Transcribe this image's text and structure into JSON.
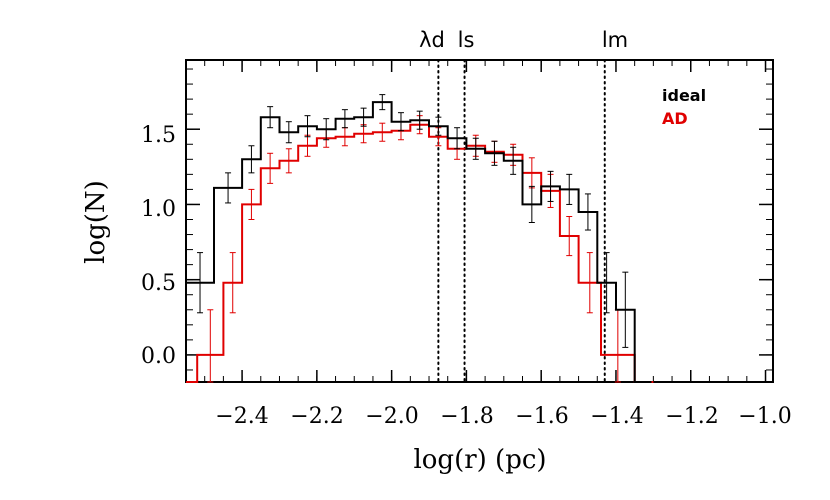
{
  "chart_data": {
    "type": "line",
    "title": "",
    "xlabel": "log(r) (pc)",
    "ylabel": "log(N)",
    "xlim": [
      -2.55,
      -0.98
    ],
    "ylim": [
      -0.18,
      1.96
    ],
    "xticks": [
      -2.4,
      -2.2,
      -2.0,
      -1.8,
      -1.6,
      -1.4,
      -1.2,
      -1.0
    ],
    "xtick_labels": [
      "−2.4",
      "−2.2",
      "−2.0",
      "−1.8",
      "−1.6",
      "−1.4",
      "−1.2",
      "−1.0"
    ],
    "yticks": [
      0.0,
      0.5,
      1.0,
      1.5
    ],
    "ytick_labels": [
      "0.0",
      "0.5",
      "1.0",
      "1.5"
    ],
    "vlines": [
      {
        "x": -1.875,
        "label": "λd"
      },
      {
        "x": -1.805,
        "label": "ls"
      },
      {
        "x": -1.43,
        "label": "lm"
      }
    ],
    "series": [
      {
        "name": "ideal",
        "color": "#000000",
        "edges": [
          -2.55,
          -2.475,
          -2.4,
          -2.35,
          -2.3,
          -2.25,
          -2.2,
          -2.15,
          -2.1,
          -2.05,
          -2.0,
          -1.95,
          -1.9,
          -1.85,
          -1.8,
          -1.75,
          -1.7,
          -1.65,
          -1.6,
          -1.55,
          -1.5,
          -1.45,
          -1.4,
          -1.35,
          -1.305
        ],
        "values": [
          0.48,
          1.11,
          1.3,
          1.58,
          1.48,
          1.52,
          1.5,
          1.57,
          1.58,
          1.68,
          1.55,
          1.56,
          1.52,
          1.44,
          1.37,
          1.34,
          1.29,
          1.0,
          1.12,
          1.1,
          0.95,
          0.48,
          0.3,
          -0.2
        ],
        "errors": [
          0.2,
          0.1,
          0.09,
          0.07,
          0.07,
          0.07,
          0.07,
          0.06,
          0.06,
          0.05,
          0.06,
          0.06,
          0.06,
          0.07,
          0.07,
          0.08,
          0.09,
          0.12,
          0.1,
          0.1,
          0.12,
          0.2,
          0.25,
          0
        ]
      },
      {
        "name": "AD",
        "color": "#e00000",
        "edges": [
          -2.55,
          -2.52,
          -2.45,
          -2.4,
          -2.35,
          -2.3,
          -2.25,
          -2.2,
          -2.15,
          -2.1,
          -2.05,
          -2.0,
          -1.95,
          -1.9,
          -1.85,
          -1.8,
          -1.75,
          -1.7,
          -1.65,
          -1.6,
          -1.55,
          -1.5,
          -1.44,
          -1.35,
          -1.3
        ],
        "values": [
          -0.2,
          0.0,
          0.48,
          1.0,
          1.24,
          1.29,
          1.39,
          1.44,
          1.45,
          1.47,
          1.48,
          1.49,
          1.53,
          1.45,
          1.37,
          1.39,
          1.35,
          1.33,
          1.21,
          1.09,
          0.79,
          0.48,
          0.0,
          -0.2
        ],
        "errors": [
          0,
          0.3,
          0.2,
          0.1,
          0.1,
          0.08,
          0.07,
          0.06,
          0.06,
          0.06,
          0.06,
          0.06,
          0.06,
          0.06,
          0.07,
          0.07,
          0.07,
          0.07,
          0.1,
          0.11,
          0.13,
          0.2,
          0.3,
          0
        ]
      }
    ],
    "legend": [
      {
        "label": "ideal",
        "color": "#000000"
      },
      {
        "label": "AD",
        "color": "#e00000"
      }
    ],
    "legend_position": "top-right"
  }
}
